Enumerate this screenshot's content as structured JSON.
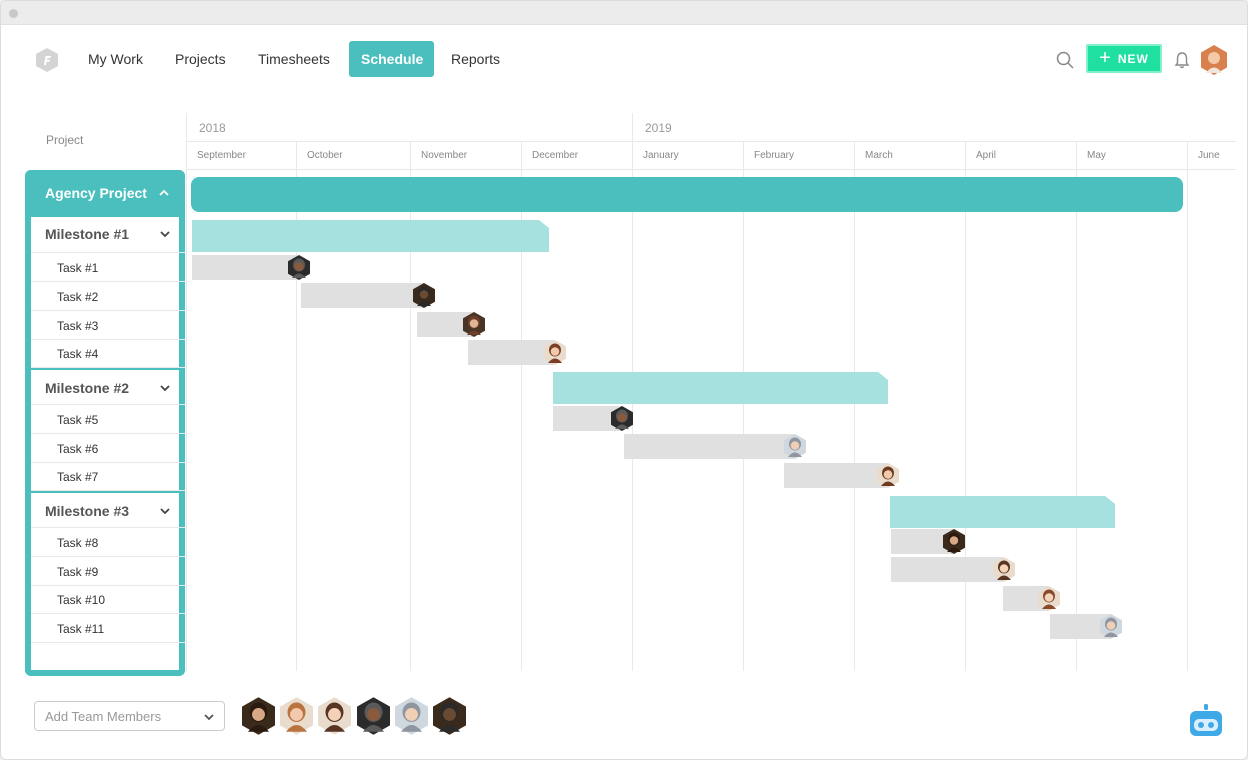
{
  "colors": {
    "accent": "#4bbfbe",
    "milestone": "#a6e1df",
    "task": "#e0e0e0",
    "new_button": "#1fe0a0",
    "bot": "#3fa9e8"
  },
  "nav": {
    "items": [
      {
        "label": "My Work",
        "active": false
      },
      {
        "label": "Projects",
        "active": false
      },
      {
        "label": "Timesheets",
        "active": false
      },
      {
        "label": "Schedule",
        "active": true
      },
      {
        "label": "Reports",
        "active": false
      }
    ],
    "new_label": "NEW"
  },
  "sidebar": {
    "header": "Project",
    "project": "Agency Project",
    "rows": [
      {
        "label": "Milestone #1",
        "type": "milestone"
      },
      {
        "label": "Task #1",
        "type": "task"
      },
      {
        "label": "Task #2",
        "type": "task"
      },
      {
        "label": "Task #3",
        "type": "task"
      },
      {
        "label": "Task #4",
        "type": "task"
      },
      {
        "label": "Milestone #2",
        "type": "milestone"
      },
      {
        "label": "Task #5",
        "type": "task"
      },
      {
        "label": "Task #6",
        "type": "task"
      },
      {
        "label": "Task #7",
        "type": "task"
      },
      {
        "label": "Milestone #3",
        "type": "milestone"
      },
      {
        "label": "Task #8",
        "type": "task"
      },
      {
        "label": "Task #9",
        "type": "task"
      },
      {
        "label": "Task #10",
        "type": "task"
      },
      {
        "label": "Task #11",
        "type": "task"
      }
    ]
  },
  "timeline": {
    "years": [
      "2018",
      "2019"
    ],
    "months": [
      "September",
      "October",
      "November",
      "December",
      "January",
      "February",
      "March",
      "April",
      "May",
      "June"
    ]
  },
  "footer": {
    "add_members_placeholder": "Add Team Members"
  }
}
